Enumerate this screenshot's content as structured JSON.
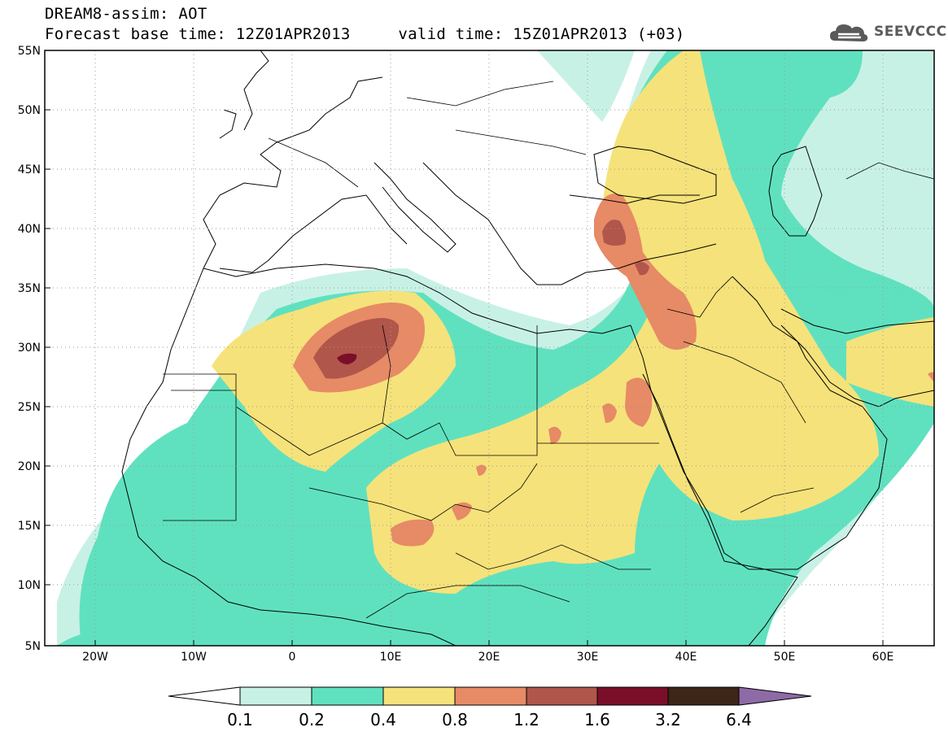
{
  "header": {
    "title": "DREAM8-assim: AOT",
    "base_time_label": "Forecast base time: 12Z01APR2013",
    "valid_time_label": "valid time: 15Z01APR2013 (+03)"
  },
  "logo": {
    "text": "SEEVCCC",
    "icon": "cloud-icon"
  },
  "map": {
    "lat_labels": [
      "55N",
      "50N",
      "45N",
      "40N",
      "35N",
      "30N",
      "25N",
      "20N",
      "15N",
      "10N",
      "5N"
    ],
    "lon_labels": [
      "20W",
      "10W",
      "0",
      "10E",
      "20E",
      "30E",
      "40E",
      "50E",
      "60E"
    ]
  },
  "colorbar": {
    "levels": [
      "0.1",
      "0.2",
      "0.4",
      "0.8",
      "1.2",
      "1.6",
      "3.2",
      "6.4"
    ],
    "colors": {
      "under": "#ffffff",
      "c1": "#c8f1e6",
      "c2": "#5fe1bf",
      "c3": "#f6e27a",
      "c4": "#e78a66",
      "c5": "#b1564a",
      "c6": "#7a0f2a",
      "c7": "#3d2618",
      "over": "#8e6aa6"
    }
  }
}
